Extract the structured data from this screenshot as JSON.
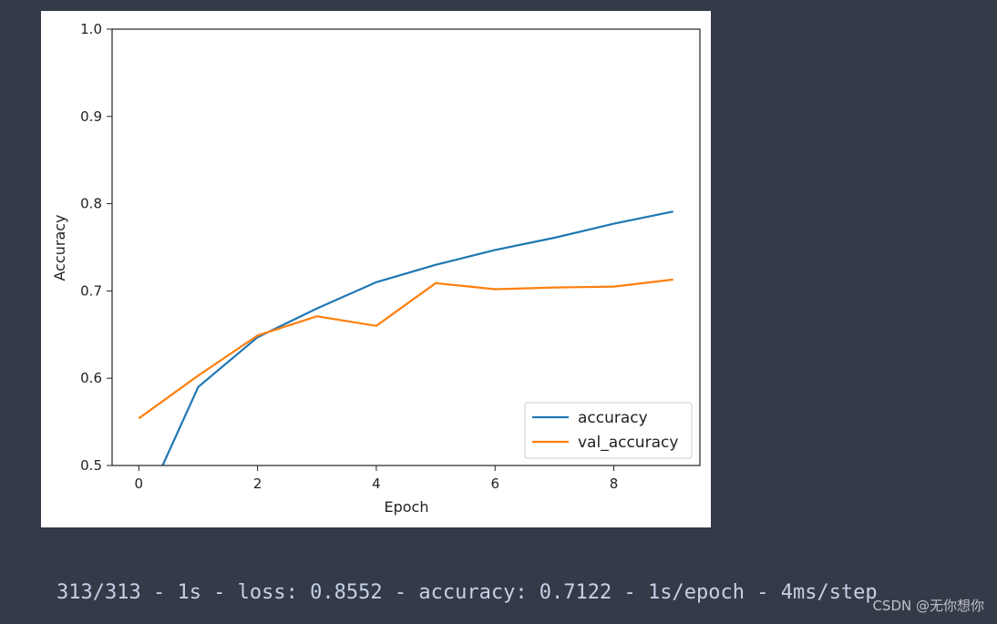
{
  "chart_data": {
    "type": "line",
    "title": "",
    "xlabel": "Epoch",
    "ylabel": "Accuracy",
    "xlim": [
      -0.45,
      9.45
    ],
    "ylim": [
      0.5,
      1.0
    ],
    "x_ticks": [
      0,
      2,
      4,
      6,
      8
    ],
    "y_ticks": [
      0.5,
      0.6,
      0.7,
      0.8,
      0.9,
      1.0
    ],
    "legend_position": "lower-right",
    "series": [
      {
        "name": "accuracy",
        "color": "#1f77b4",
        "x": [
          0,
          1,
          2,
          3,
          4,
          5,
          6,
          7,
          8,
          9
        ],
        "values": [
          0.44,
          0.59,
          0.647,
          0.68,
          0.71,
          0.73,
          0.747,
          0.761,
          0.777,
          0.791
        ]
      },
      {
        "name": "val_accuracy",
        "color": "#ff7f0e",
        "x": [
          0,
          1,
          2,
          3,
          4,
          5,
          6,
          7,
          8,
          9
        ],
        "values": [
          0.554,
          0.603,
          0.649,
          0.671,
          0.66,
          0.709,
          0.702,
          0.704,
          0.705,
          0.713
        ]
      }
    ]
  },
  "console": {
    "text": "313/313 - 1s - loss: 0.8552 - accuracy: 0.7122 - 1s/epoch - 4ms/step"
  },
  "watermark": {
    "text": "CSDN @无你想你"
  }
}
